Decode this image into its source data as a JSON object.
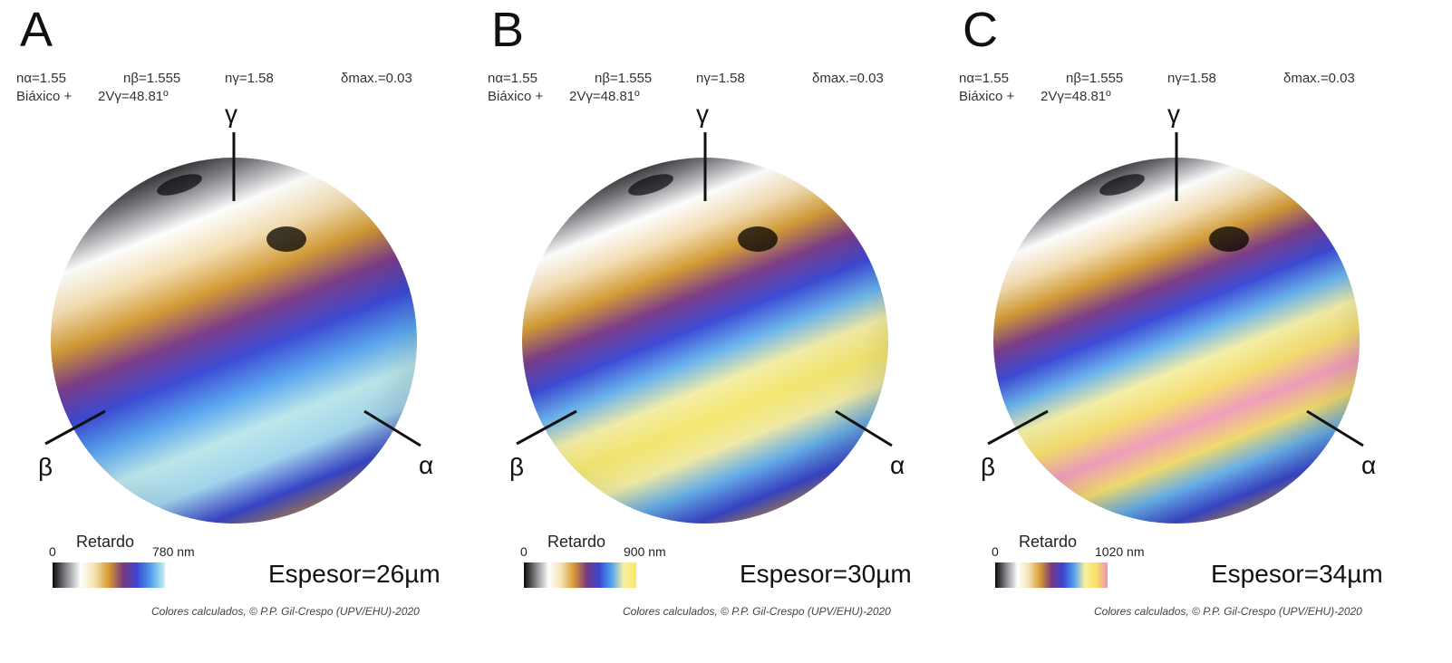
{
  "common": {
    "n_alpha": "nα=1.55",
    "n_beta": "nβ=1.555",
    "n_gamma": "nγ=1.58",
    "delta_max": "δmax.=0.03",
    "biaxial": "Biáxico +",
    "two_v": "2Vγ=48.81º",
    "axis_gamma": "γ",
    "axis_beta": "β",
    "axis_alpha": "α",
    "retardo": "Retardo",
    "scale_zero": "0",
    "credit": "Colores calculados, © P.P. Gil-Crespo (UPV/EHU)-2020"
  },
  "panels": [
    {
      "label": "A",
      "scale_max": "780 nm",
      "thickness": "Espesor=26µm",
      "scale_colors": [
        "#0a0a0a",
        "#8a8a90",
        "#ffffff",
        "#f4e2b0",
        "#d99a30",
        "#7a3a80",
        "#3b44d0",
        "#50a0f0",
        "#c8f0f0"
      ],
      "band_colors": [
        "#0a0a0a",
        "#7a7a82",
        "#ffffff",
        "#f3ddb0",
        "#d39a35",
        "#7c3c88",
        "#3c4ad6",
        "#5aa8f2",
        "#c0ecf0",
        "#a8dcf4",
        "#3c4ad6",
        "#d39a35"
      ]
    },
    {
      "label": "B",
      "scale_max": "900 nm",
      "thickness": "Espesor=30µm",
      "scale_colors": [
        "#0a0a0a",
        "#8a8a90",
        "#ffffff",
        "#f4e2b0",
        "#d99a30",
        "#7a3a80",
        "#3b44d0",
        "#50a0f0",
        "#f8f0a0",
        "#f8e860"
      ],
      "band_colors": [
        "#0a0a0a",
        "#7a7a82",
        "#ffffff",
        "#f3ddb0",
        "#d39a35",
        "#7c3c88",
        "#3c4ad6",
        "#6ab4f0",
        "#f6f0a8",
        "#f8ea70",
        "#f6f0a8",
        "#6ab4f0",
        "#3c4ad6",
        "#d39a35"
      ]
    },
    {
      "label": "C",
      "scale_max": "1020 nm",
      "thickness": "Espesor=34µm",
      "scale_colors": [
        "#0a0a0a",
        "#8a8a90",
        "#ffffff",
        "#f4e2b0",
        "#d99a30",
        "#7a3a80",
        "#3b44d0",
        "#50a0f0",
        "#f8f0a0",
        "#f8e060",
        "#f090b8"
      ],
      "band_colors": [
        "#0a0a0a",
        "#7a7a82",
        "#ffffff",
        "#f3ddb0",
        "#d39a35",
        "#7c3c88",
        "#3c4ad6",
        "#6ab4f0",
        "#f6f0a8",
        "#f8e070",
        "#f4a0c0",
        "#f8e070",
        "#6ab4f0",
        "#3c4ad6",
        "#d39a35"
      ]
    }
  ]
}
